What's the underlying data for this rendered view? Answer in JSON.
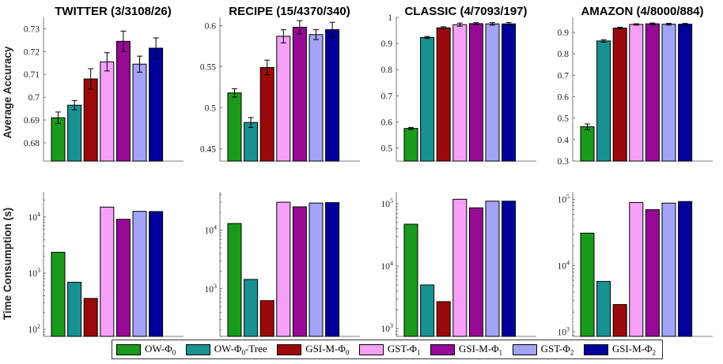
{
  "colors": [
    "#1a9a1a",
    "#199191",
    "#9a0a0a",
    "#f7a0f7",
    "#960a96",
    "#a3a3f7",
    "#00009a"
  ],
  "legend": [
    {
      "label": "OW-Φ0",
      "plain": "OW-",
      "sym": "Φ",
      "sub": "0",
      "suffix": ""
    },
    {
      "label": "OW-Φ0-Tree",
      "plain": "OW-",
      "sym": "Φ",
      "sub": "0",
      "suffix": "-Tree"
    },
    {
      "label": "GSI-M-Φ0",
      "plain": "GSI-M-",
      "sym": "Φ",
      "sub": "0",
      "suffix": ""
    },
    {
      "label": "GST-Φ1",
      "plain": "GST-",
      "sym": "Φ",
      "sub": "1",
      "suffix": ""
    },
    {
      "label": "GSI-M-Φ1",
      "plain": "GSI-M-",
      "sym": "Φ",
      "sub": "1",
      "suffix": ""
    },
    {
      "label": "GST-Φ2",
      "plain": "GST-",
      "sym": "Φ",
      "sub": "2",
      "suffix": ""
    },
    {
      "label": "GSI-M-Φ2",
      "plain": "GSI-M-",
      "sym": "Φ",
      "sub": "2",
      "suffix": ""
    }
  ],
  "chart_data": [
    {
      "type": "bar",
      "title": "TWITTER (3/3108/26)",
      "ylabel": "Average Accuracy",
      "yscale": "linear",
      "ylim": [
        0.672,
        0.735
      ],
      "yticks": [
        0.68,
        0.69,
        0.7,
        0.71,
        0.72,
        0.73
      ],
      "yticklabels": [
        "0.68",
        "0.69",
        "0.7",
        "0.71",
        "0.72",
        "0.73"
      ],
      "values": [
        0.691,
        0.6965,
        0.708,
        0.7155,
        0.7245,
        0.7145,
        0.7215
      ],
      "errors": [
        0.0025,
        0.002,
        0.0045,
        0.004,
        0.0045,
        0.0035,
        0.0045
      ]
    },
    {
      "type": "bar",
      "title": "RECIPE (15/4370/340)",
      "ylabel": "",
      "yscale": "linear",
      "ylim": [
        0.435,
        0.61
      ],
      "yticks": [
        0.45,
        0.5,
        0.55,
        0.6
      ],
      "yticklabels": [
        "0.45",
        "0.5",
        "0.55",
        "0.6"
      ],
      "values": [
        0.518,
        0.482,
        0.549,
        0.587,
        0.598,
        0.589,
        0.595
      ],
      "errors": [
        0.005,
        0.006,
        0.009,
        0.008,
        0.008,
        0.006,
        0.009
      ]
    },
    {
      "type": "bar",
      "title": "CLASSIC (4/7093/197)",
      "ylabel": "",
      "yscale": "linear",
      "ylim": [
        0.45,
        1.0
      ],
      "yticks": [
        0.5,
        0.6,
        0.7,
        0.8,
        0.9,
        1
      ],
      "yticklabels": [
        "0.5",
        "0.6",
        "0.7",
        "0.8",
        "0.9",
        "1"
      ],
      "values": [
        0.575,
        0.923,
        0.96,
        0.972,
        0.976,
        0.975,
        0.975
      ],
      "errors": [
        0.004,
        0.004,
        0.004,
        0.006,
        0.004,
        0.005,
        0.005
      ]
    },
    {
      "type": "bar",
      "title": "AMAZON (4/8000/884)",
      "ylabel": "",
      "yscale": "linear",
      "ylim": [
        0.3,
        0.97
      ],
      "yticks": [
        0.3,
        0.4,
        0.5,
        0.6,
        0.7,
        0.8,
        0.9
      ],
      "yticklabels": [
        "0.3",
        "0.4",
        "0.5",
        "0.6",
        "0.7",
        "0.8",
        "0.9"
      ],
      "values": [
        0.46,
        0.86,
        0.92,
        0.937,
        0.94,
        0.938,
        0.938
      ],
      "errors": [
        0.013,
        0.006,
        0.004,
        0.003,
        0.004,
        0.004,
        0.004
      ]
    },
    {
      "type": "bar",
      "title": "",
      "ylabel": "Time Consumption (s)",
      "yscale": "log",
      "ylim": [
        75,
        28000
      ],
      "yticks": [
        100,
        1000,
        10000
      ],
      "yticklabels": [
        [
          "10",
          "2"
        ],
        [
          "10",
          "3"
        ],
        [
          "10",
          "4"
        ]
      ],
      "values": [
        2350,
        690,
        355,
        15000,
        9100,
        12600,
        12500
      ],
      "errors": []
    },
    {
      "type": "bar",
      "title": "",
      "ylabel": "",
      "yscale": "log",
      "ylim": [
        155,
        45000
      ],
      "yticks": [
        1000,
        10000
      ],
      "yticklabels": [
        [
          "10",
          "3"
        ],
        [
          "10",
          "4"
        ]
      ],
      "values": [
        13000,
        1450,
        630,
        30000,
        25000,
        29000,
        29500
      ],
      "errors": []
    },
    {
      "type": "bar",
      "title": "",
      "ylabel": "",
      "yscale": "log",
      "ylim": [
        750,
        155000
      ],
      "yticks": [
        1000,
        10000,
        100000
      ],
      "yticklabels": [
        [
          "10",
          "3"
        ],
        [
          "10",
          "4"
        ],
        [
          "10",
          "5"
        ]
      ],
      "values": [
        47000,
        5000,
        2700,
        118000,
        86000,
        110000,
        110000
      ],
      "errors": []
    },
    {
      "type": "bar",
      "title": "",
      "ylabel": "",
      "yscale": "log",
      "ylim": [
        860,
        130000
      ],
      "yticks": [
        1000,
        10000,
        100000
      ],
      "yticklabels": [
        [
          "10",
          "3"
        ],
        [
          "10",
          "4"
        ],
        [
          "10",
          "5"
        ]
      ],
      "values": [
        31000,
        5800,
        2600,
        90000,
        70000,
        88000,
        93000
      ],
      "errors": []
    }
  ]
}
